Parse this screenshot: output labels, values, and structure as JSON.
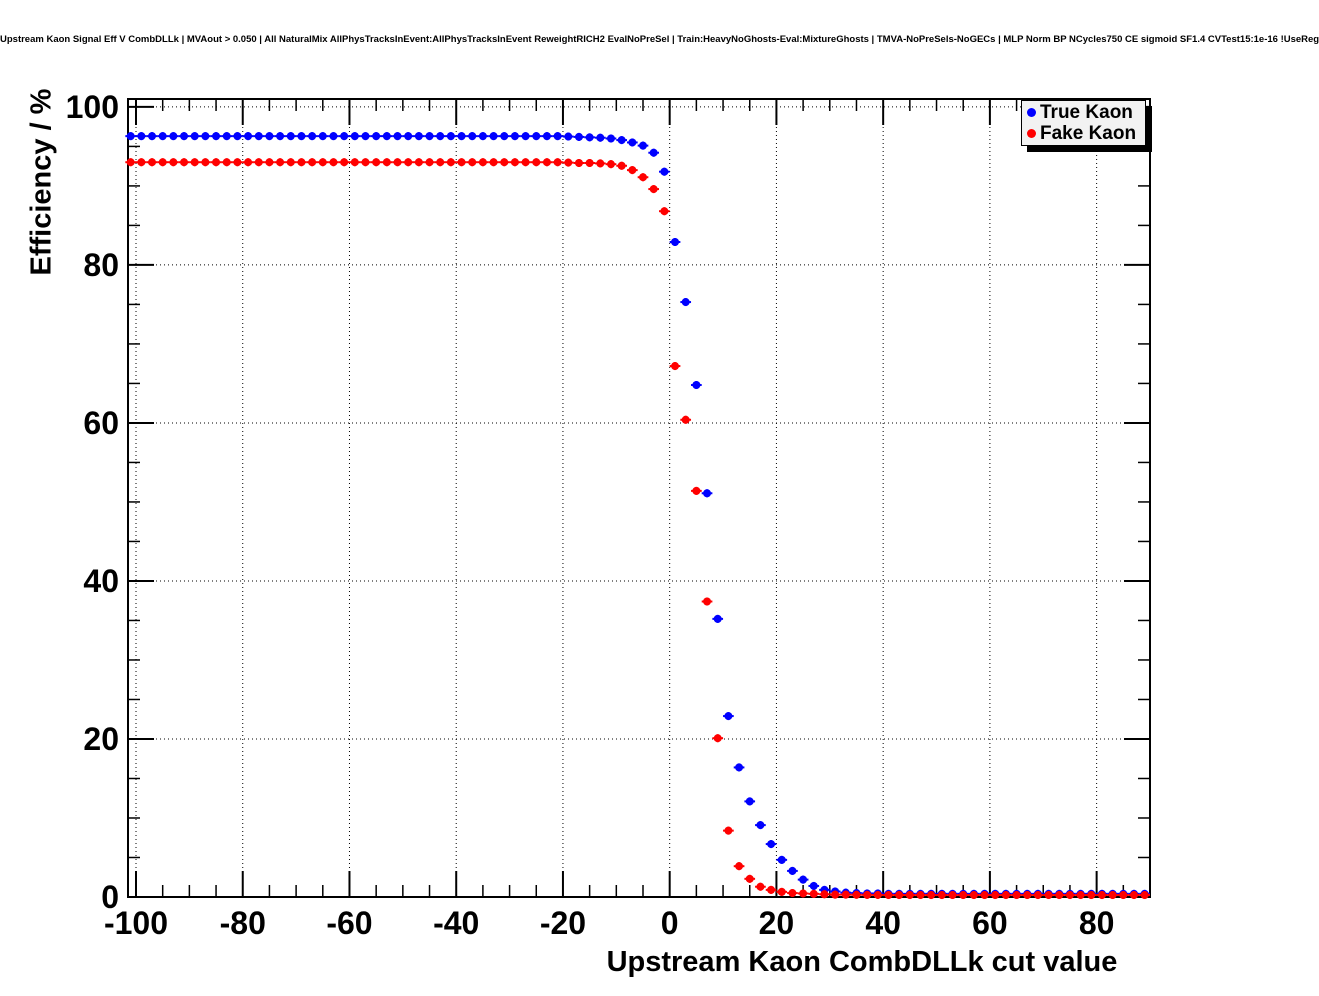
{
  "header": {
    "title": "Upstream Kaon Signal Eff V CombDLLk | MVAout > 0.050 | All NaturalMix AllPhysTracksInEvent:AllPhysTracksInEvent ReweightRICH2 EvalNoPreSel | Train:HeavyNoGhosts-Eval:MixtureGhosts | TMVA-NoPreSels-NoGECs | MLP Norm BP NCycles750 CE sigmoid SF1.4 CVTest15:1e-16 !UseReg"
  },
  "legend": {
    "position": "top-right",
    "background": "#f2f2f2",
    "border_color": "#000000",
    "shadow_color": "#000000",
    "entries": [
      {
        "label": "True Kaon",
        "color": "#0000ff",
        "marker": "filled-circle"
      },
      {
        "label": "Fake Kaon",
        "color": "#ff0000",
        "marker": "filled-circle"
      }
    ]
  },
  "chart_data": {
    "type": "scatter",
    "title": "",
    "xlabel": "Upstream Kaon CombDLLk cut value",
    "ylabel": "Efficiency / %",
    "xlim": [
      -101.5,
      90
    ],
    "ylim": [
      0,
      101
    ],
    "x_major_ticks": [
      -100,
      -80,
      -60,
      -40,
      -20,
      0,
      20,
      40,
      60,
      80
    ],
    "y_major_ticks": [
      0,
      20,
      40,
      60,
      80,
      100
    ],
    "minor_tick_step_x": 5,
    "minor_tick_step_y": 5,
    "grid": "dotted-at-major-ticks",
    "axis_color": "#000000",
    "marker_diameter_px": 8,
    "x_bin_halfwidth": 1,
    "x": [
      -101,
      -99,
      -97,
      -95,
      -93,
      -91,
      -89,
      -87,
      -85,
      -83,
      -81,
      -79,
      -77,
      -75,
      -73,
      -71,
      -69,
      -67,
      -65,
      -63,
      -61,
      -59,
      -57,
      -55,
      -53,
      -51,
      -49,
      -47,
      -45,
      -43,
      -41,
      -39,
      -37,
      -35,
      -33,
      -31,
      -29,
      -27,
      -25,
      -23,
      -21,
      -19,
      -17,
      -15,
      -13,
      -11,
      -9,
      -7,
      -5,
      -3,
      -1,
      1,
      3,
      5,
      7,
      9,
      11,
      13,
      15,
      17,
      19,
      21,
      23,
      25,
      27,
      29,
      31,
      33,
      35,
      37,
      39,
      41,
      43,
      45,
      47,
      49,
      51,
      53,
      55,
      57,
      59,
      61,
      63,
      65,
      67,
      69,
      71,
      73,
      75,
      77,
      79,
      81,
      83,
      85,
      87,
      89
    ],
    "series": [
      {
        "name": "True Kaon",
        "color": "#0000ff",
        "values": [
          96.3,
          96.3,
          96.3,
          96.3,
          96.3,
          96.3,
          96.3,
          96.3,
          96.3,
          96.3,
          96.3,
          96.3,
          96.3,
          96.3,
          96.3,
          96.3,
          96.3,
          96.3,
          96.3,
          96.3,
          96.3,
          96.3,
          96.3,
          96.3,
          96.3,
          96.3,
          96.3,
          96.3,
          96.3,
          96.3,
          96.3,
          96.3,
          96.3,
          96.3,
          96.3,
          96.3,
          96.3,
          96.3,
          96.3,
          96.3,
          96.3,
          96.25,
          96.2,
          96.15,
          96.1,
          96.0,
          95.8,
          95.5,
          95.1,
          94.2,
          91.8,
          82.9,
          75.3,
          64.8,
          51.1,
          35.2,
          22.9,
          16.4,
          12.1,
          9.1,
          6.7,
          4.7,
          3.3,
          2.2,
          1.4,
          0.9,
          0.7,
          0.55,
          0.5,
          0.45,
          0.45,
          0.4,
          0.4,
          0.4,
          0.4,
          0.4,
          0.4,
          0.4,
          0.4,
          0.4,
          0.4,
          0.4,
          0.4,
          0.4,
          0.4,
          0.4,
          0.4,
          0.4,
          0.4,
          0.4,
          0.4,
          0.4,
          0.4,
          0.4,
          0.4,
          0.4
        ]
      },
      {
        "name": "Fake Kaon",
        "color": "#ff0000",
        "values": [
          93.0,
          93.0,
          93.0,
          93.0,
          93.0,
          93.0,
          93.0,
          93.0,
          93.0,
          93.0,
          93.0,
          93.0,
          93.0,
          93.0,
          93.0,
          93.0,
          93.0,
          93.0,
          93.0,
          93.0,
          93.0,
          93.0,
          93.0,
          93.0,
          93.0,
          93.0,
          93.0,
          93.0,
          93.0,
          93.0,
          93.0,
          93.0,
          93.0,
          93.0,
          93.0,
          93.0,
          93.0,
          93.0,
          93.0,
          93.0,
          93.0,
          92.95,
          92.9,
          92.9,
          92.85,
          92.75,
          92.55,
          92.0,
          91.1,
          89.6,
          86.8,
          67.2,
          60.4,
          51.4,
          37.4,
          20.1,
          8.4,
          3.9,
          2.3,
          1.3,
          0.9,
          0.65,
          0.5,
          0.45,
          0.4,
          0.35,
          0.3,
          0.3,
          0.28,
          0.27,
          0.26,
          0.25,
          0.25,
          0.25,
          0.25,
          0.25,
          0.25,
          0.25,
          0.25,
          0.25,
          0.25,
          0.25,
          0.25,
          0.25,
          0.25,
          0.25,
          0.25,
          0.25,
          0.25,
          0.25,
          0.25,
          0.25,
          0.25,
          0.25,
          0.25,
          0.25
        ]
      }
    ]
  }
}
